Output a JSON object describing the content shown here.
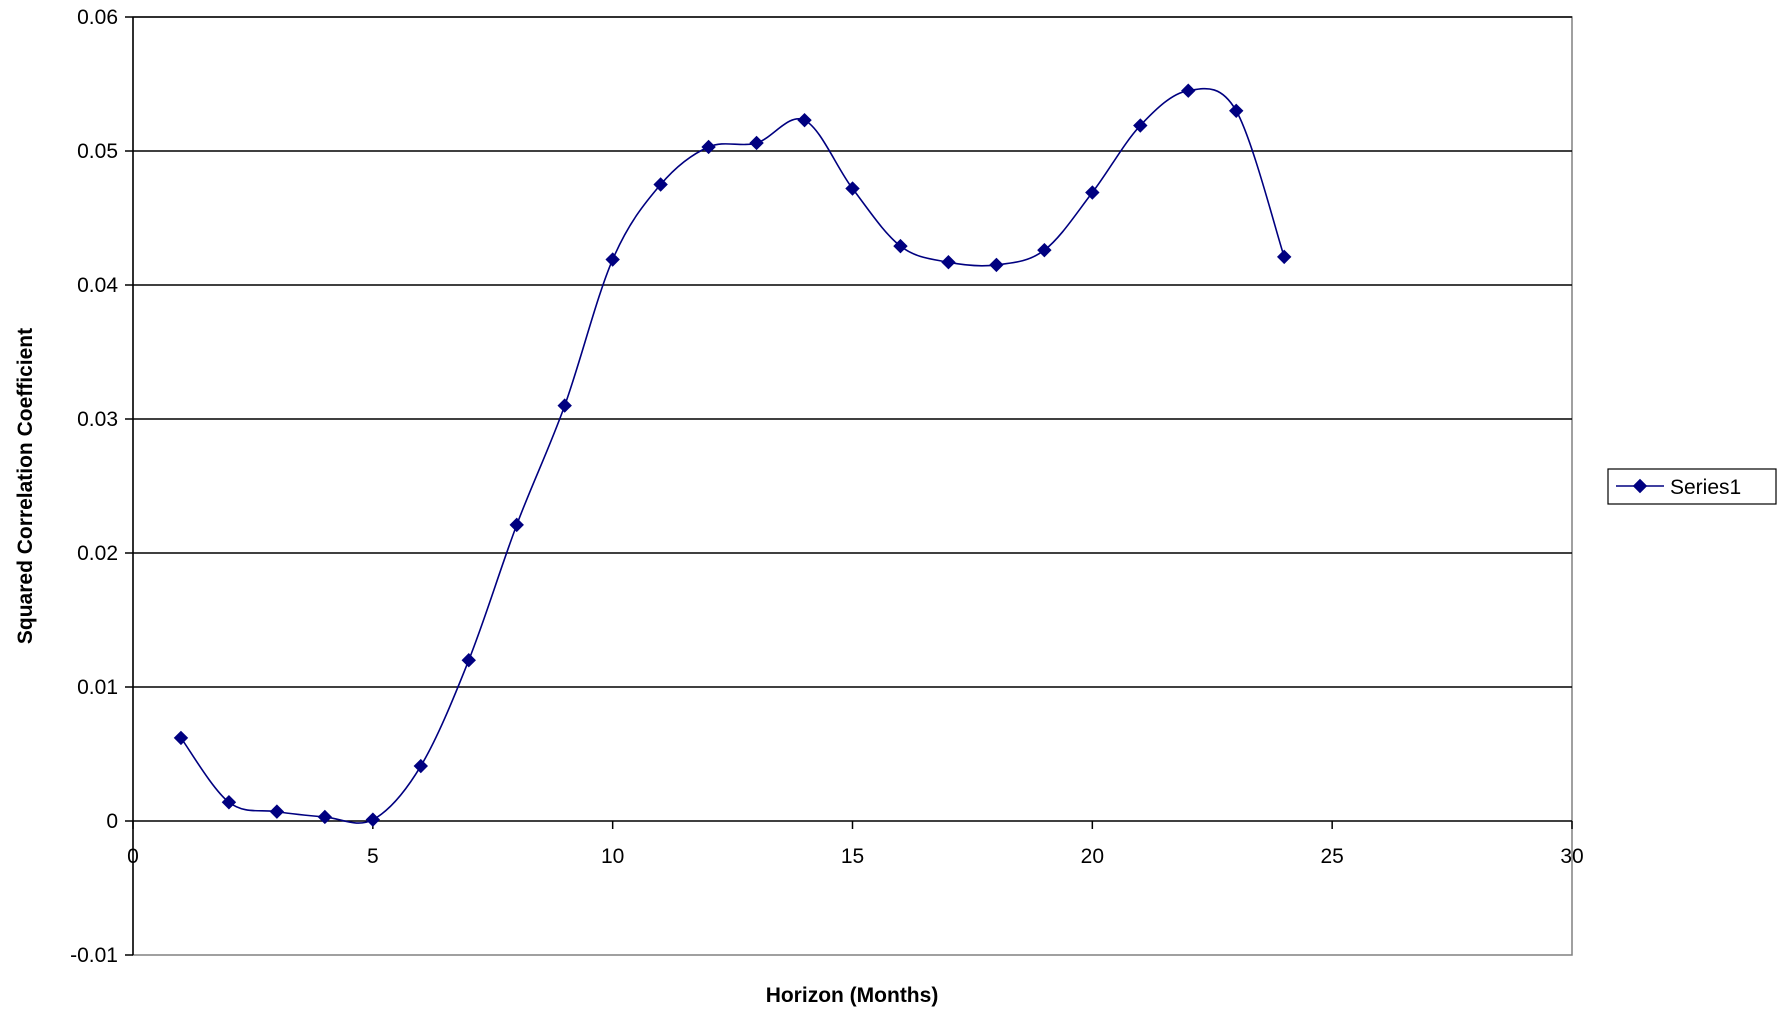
{
  "chart_data": {
    "type": "scatter",
    "xlabel": "Horizon (Months)",
    "ylabel": "Squared Correlation Coefficient",
    "xlim": [
      0,
      30
    ],
    "ylim": [
      -0.01,
      0.06
    ],
    "x_ticks": [
      0,
      5,
      10,
      15,
      20,
      25,
      30
    ],
    "y_ticks": [
      -0.01,
      0,
      0.01,
      0.02,
      0.03,
      0.04,
      0.05,
      0.06
    ],
    "x_tick_labels": [
      "0",
      "5",
      "10",
      "15",
      "20",
      "25",
      "30"
    ],
    "y_tick_labels": [
      "-0.01",
      "0",
      "0.01",
      "0.02",
      "0.03",
      "0.04",
      "0.05",
      "0.06"
    ],
    "grid": "horizontal",
    "smoothed_line": true,
    "legend_position": "right",
    "series": [
      {
        "name": "Series1",
        "color": "#000080",
        "marker": "diamond",
        "x": [
          1,
          2,
          3,
          4,
          5,
          6,
          7,
          8,
          9,
          10,
          11,
          12,
          13,
          14,
          15,
          16,
          17,
          18,
          19,
          20,
          21,
          22,
          23,
          24
        ],
        "y": [
          0.0062,
          0.0014,
          0.0007,
          0.0003,
          0.0001,
          0.0041,
          0.012,
          0.0221,
          0.031,
          0.0419,
          0.0475,
          0.0503,
          0.0506,
          0.0523,
          0.0472,
          0.0429,
          0.0417,
          0.0415,
          0.0426,
          0.0469,
          0.0519,
          0.0545,
          0.053,
          0.0421
        ]
      }
    ]
  }
}
